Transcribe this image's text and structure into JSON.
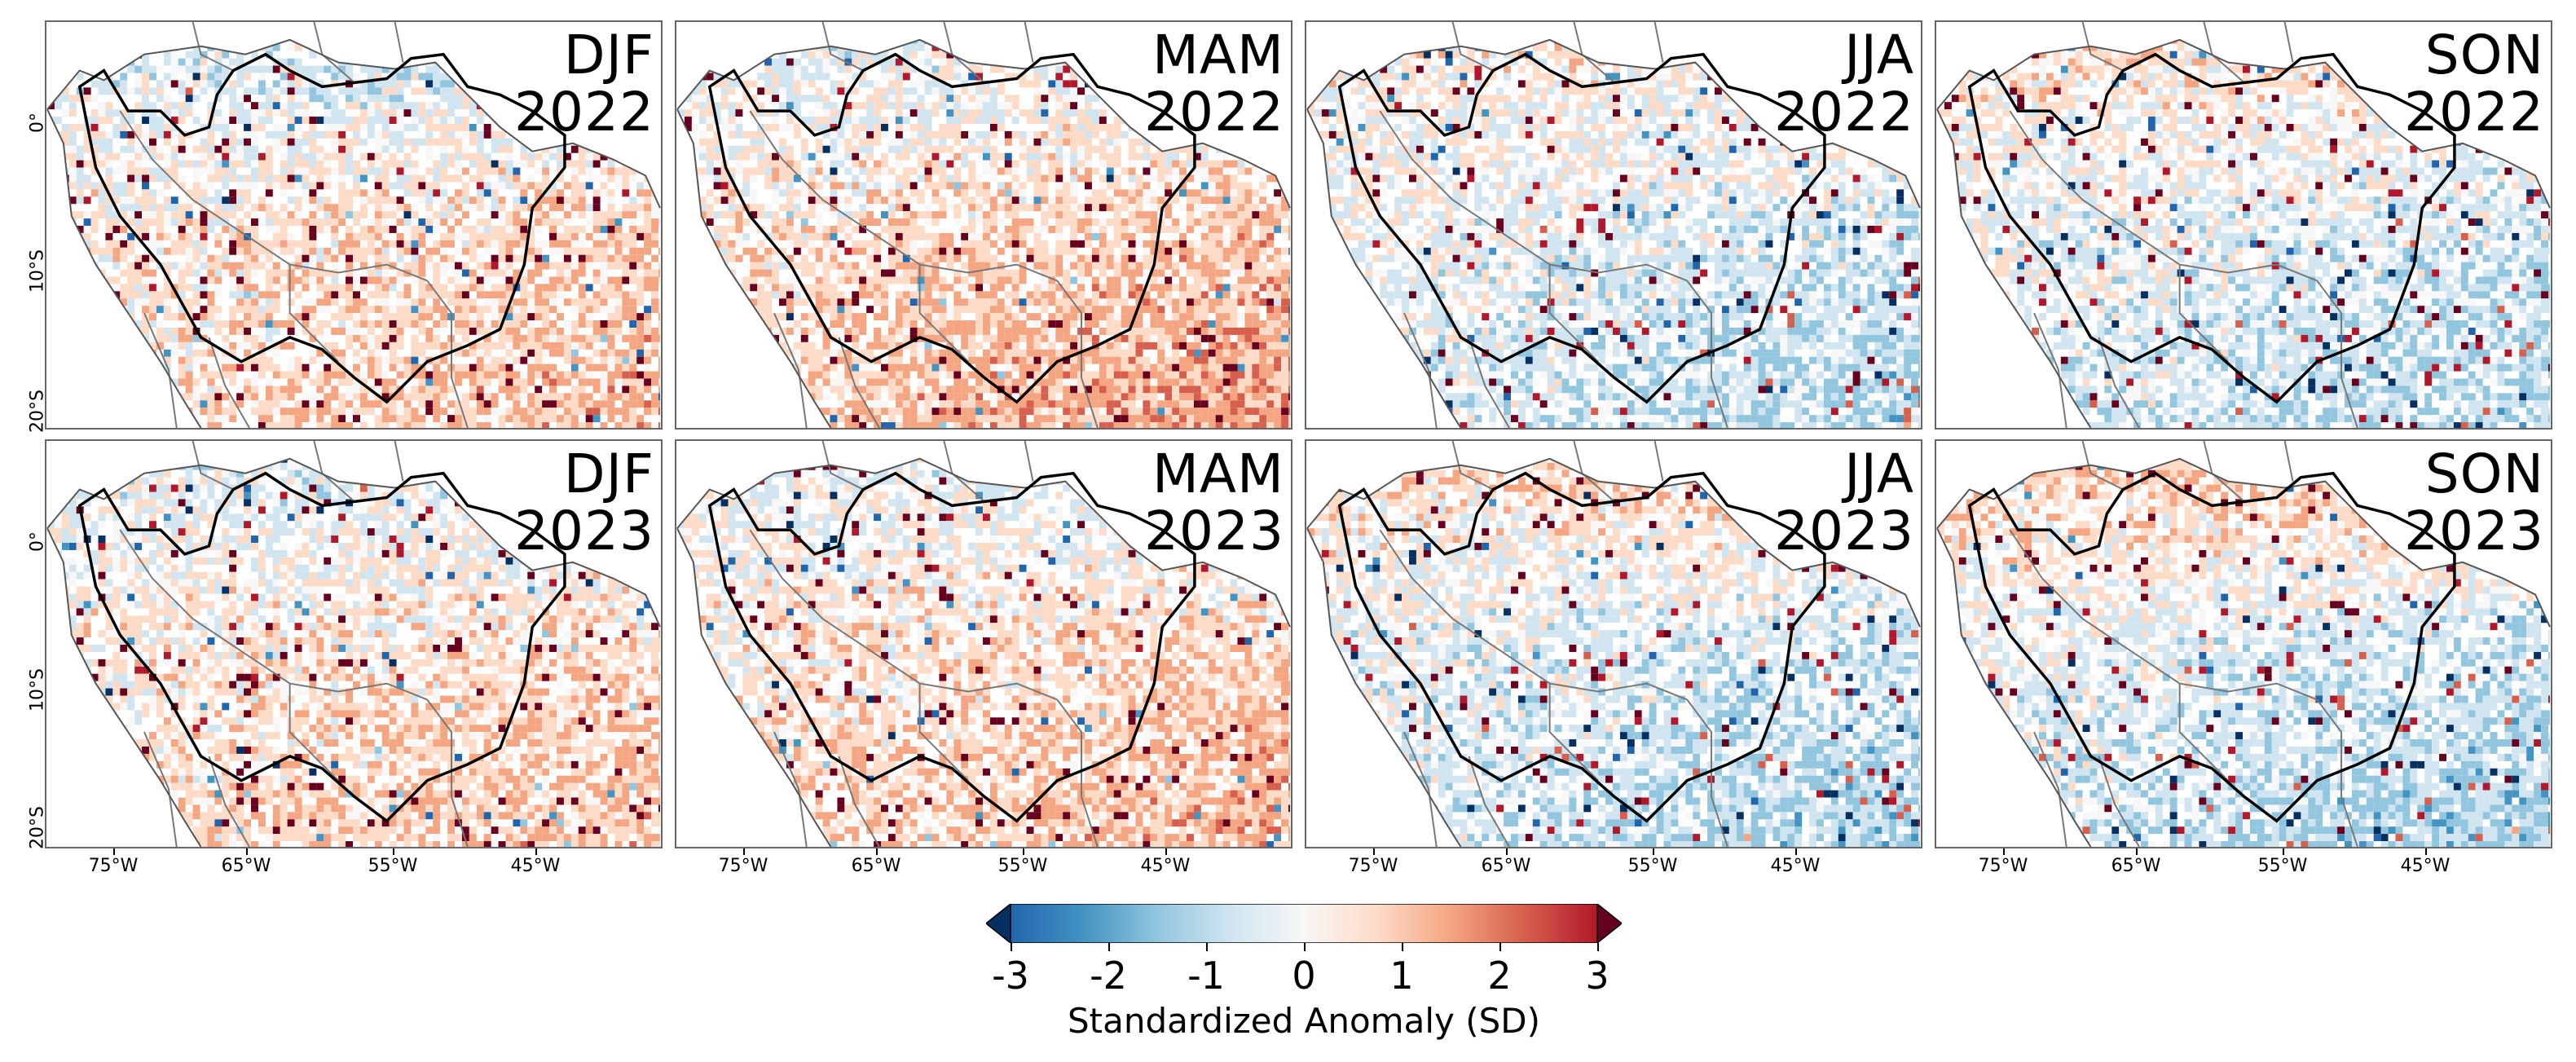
{
  "panels": [
    {
      "season": "DJF",
      "year": "2022",
      "pattern": {
        "north_blue": 0.55,
        "south_red": 0.55,
        "bias": 0.0
      }
    },
    {
      "season": "MAM",
      "year": "2022",
      "pattern": {
        "north_blue": 0.35,
        "south_red": 0.75,
        "bias": 0.05
      }
    },
    {
      "season": "JJA",
      "year": "2022",
      "pattern": {
        "north_blue": -0.2,
        "south_red": -0.55,
        "bias": 0.1
      }
    },
    {
      "season": "SON",
      "year": "2022",
      "pattern": {
        "north_blue": -0.45,
        "south_red": -0.5,
        "bias": 0.05
      }
    },
    {
      "season": "DJF",
      "year": "2023",
      "pattern": {
        "north_blue": 0.45,
        "south_red": 0.45,
        "bias": 0.05
      }
    },
    {
      "season": "MAM",
      "year": "2023",
      "pattern": {
        "north_blue": 0.3,
        "south_red": 0.55,
        "bias": 0.05
      }
    },
    {
      "season": "JJA",
      "year": "2023",
      "pattern": {
        "north_blue": -0.6,
        "south_red": -0.6,
        "bias": 0.05
      }
    },
    {
      "season": "SON",
      "year": "2023",
      "pattern": {
        "north_blue": -0.8,
        "south_red": -0.7,
        "bias": 0.1
      }
    }
  ],
  "axes": {
    "y_ticks": [
      "0°",
      "10°S",
      "20°S"
    ],
    "x_ticks": [
      "75°W",
      "65°W",
      "55°W",
      "45°W"
    ]
  },
  "colorbar": {
    "ticks": [
      "-3",
      "-2",
      "-1",
      "0",
      "1",
      "2",
      "3"
    ],
    "range": [
      -3,
      3
    ],
    "label": "Standardized Anomaly (SD)",
    "colors": [
      "#053061",
      "#2166ac",
      "#4393c3",
      "#92c5de",
      "#d1e5f0",
      "#f7f7f7",
      "#fddbc7",
      "#f4a582",
      "#d6604d",
      "#b2182b",
      "#67001f"
    ]
  }
}
